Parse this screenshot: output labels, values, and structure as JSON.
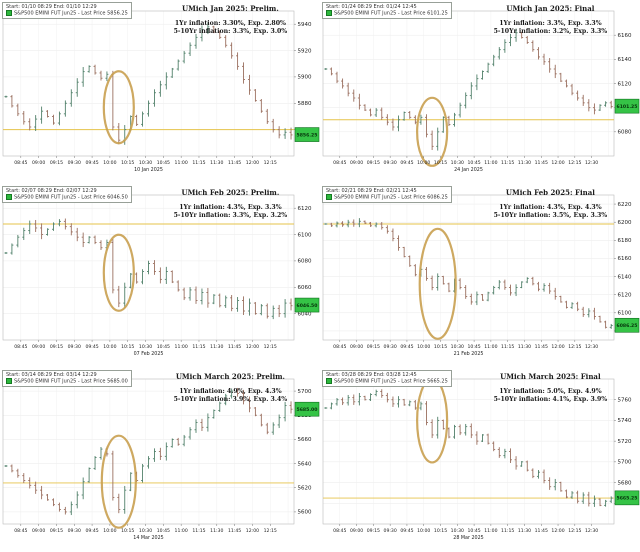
{
  "app": {
    "description": "Six-panel montage of S&P500 E-Mini futures intraday charts around University of Michigan inflation expectation releases",
    "colors": {
      "annotation_ellipse": "#c9a050",
      "reference_line": "#e6c34a",
      "last_price_box": "#35c346",
      "bar_up": "#51806a",
      "bar_down": "#9a6f5f",
      "grid": "#e9e9e9",
      "frame": "#bbbbbb"
    }
  },
  "chart_data": [
    {
      "id": "jan-prelim",
      "type": "bar",
      "ohlc_style": "open-close tick bars",
      "legend_range": "Start: 01/10 08:29 End: 01/10 12:29",
      "legend_series": "S&P500 EMINI FUT Jun25 - Last Price 5856.25",
      "title": "UMich Jan 2025: Prelim.",
      "stat1": "1Yr inflation: 3.30%, Exp. 2.80%",
      "stat2": "5-10Yr inflation: 3.3%, Exp. 3.0%",
      "date_label": "10 Jan 2025",
      "x_times": [
        "08:45",
        "09:00",
        "09:15",
        "09:30",
        "09:45",
        "10:00",
        "10:15",
        "10:30",
        "10:45",
        "11:00",
        "11:15",
        "11:30",
        "11:45",
        "12:00",
        "12:15"
      ],
      "y_min": 5840,
      "y_max": 5950,
      "y_ticks": [
        5940,
        5920,
        5900,
        5880,
        5860
      ],
      "closes": [
        5885,
        5878,
        5872,
        5866,
        5862,
        5868,
        5874,
        5870,
        5865,
        5872,
        5880,
        5888,
        5896,
        5904,
        5908,
        5903,
        5899,
        5902,
        5862,
        5852,
        5860,
        5870,
        5864,
        5872,
        5880,
        5888,
        5894,
        5900,
        5906,
        5912,
        5918,
        5924,
        5930,
        5936,
        5938,
        5934,
        5930,
        5924,
        5916,
        5908,
        5898,
        5890,
        5882,
        5874,
        5866,
        5860,
        5856,
        5858,
        5856
      ],
      "last_price": "5856.25",
      "ref_line": 5860,
      "circle_index": 19,
      "circle_rx": 15,
      "circle_ry": 36
    },
    {
      "id": "jan-final",
      "type": "bar",
      "ohlc_style": "open-close tick bars",
      "legend_range": "Start: 01/24 08:29 End: 01/24 12:45",
      "legend_series": "S&P500 EMINI FUT Jun25 - Last Price 6101.25",
      "title": "UMich Jan 2025: Final",
      "stat1": "1Yr inflation: 3.3%, Exp. 3.3%",
      "stat2": "5-10Yr inflation: 3.2%, Exp. 3.3%",
      "date_label": "24 Jan 2025",
      "x_times": [
        "08:45",
        "09:00",
        "09:15",
        "09:30",
        "09:45",
        "10:00",
        "10:15",
        "10:30",
        "10:45",
        "11:00",
        "11:15",
        "11:30",
        "11:45",
        "12:00",
        "12:15",
        "12:30"
      ],
      "y_min": 6060,
      "y_max": 6180,
      "y_ticks": [
        6160,
        6140,
        6120,
        6100,
        6080
      ],
      "closes": [
        6132,
        6128,
        6122,
        6118,
        6112,
        6108,
        6102,
        6098,
        6094,
        6098,
        6092,
        6088,
        6084,
        6090,
        6096,
        6092,
        6088,
        6092,
        6078,
        6068,
        6080,
        6092,
        6086,
        6094,
        6102,
        6110,
        6118,
        6124,
        6130,
        6136,
        6142,
        6148,
        6154,
        6158,
        6162,
        6158,
        6154,
        6148,
        6142,
        6138,
        6132,
        6128,
        6122,
        6118,
        6112,
        6108,
        6104,
        6100,
        6098,
        6102,
        6104,
        6101
      ],
      "last_price": "6101.25",
      "ref_line": 6090,
      "circle_index": 19,
      "circle_rx": 15,
      "circle_ry": 34
    },
    {
      "id": "feb-prelim",
      "type": "bar",
      "ohlc_style": "open-close tick bars",
      "legend_range": "Start: 02/07 08:29 End: 02/07 12:29",
      "legend_series": "S&P500 EMINI FUT Jun25 - Last Price 6046.50",
      "title": "UMich Feb 2025: Prelim.",
      "stat1": "1Yr inflation: 4.3%, Exp. 3.3%",
      "stat2": "5-10Yr inflation: 3.3%, Exp. 3.2%",
      "date_label": "07 Feb 2025",
      "x_times": [
        "08:45",
        "09:00",
        "09:15",
        "09:30",
        "09:45",
        "10:00",
        "10:15",
        "10:30",
        "10:45",
        "11:00",
        "11:15",
        "11:30",
        "11:45",
        "12:00",
        "12:15"
      ],
      "y_min": 6020,
      "y_max": 6130,
      "y_ticks": [
        6120,
        6100,
        6080,
        6060,
        6040
      ],
      "closes": [
        6086,
        6092,
        6098,
        6103,
        6108,
        6105,
        6100,
        6104,
        6108,
        6110,
        6106,
        6102,
        6098,
        6094,
        6098,
        6094,
        6090,
        6094,
        6058,
        6048,
        6060,
        6070,
        6064,
        6072,
        6078,
        6072,
        6066,
        6072,
        6064,
        6058,
        6052,
        6058,
        6050,
        6056,
        6048,
        6054,
        6046,
        6052,
        6044,
        6050,
        6042,
        6048,
        6040,
        6046,
        6038,
        6044,
        6040,
        6048,
        6046
      ],
      "last_price": "6046.50",
      "ref_line": 6108,
      "circle_index": 19,
      "circle_rx": 15,
      "circle_ry": 38
    },
    {
      "id": "feb-final",
      "type": "bar",
      "ohlc_style": "open-close tick bars",
      "legend_range": "Start: 02/21 08:29 End: 02/21 12:45",
      "legend_series": "S&P500 EMINI FUT Jun25 - Last Price 6086.25",
      "title": "UMich Feb 2025: Final",
      "stat1": "1Yr inflation: 4.3%, Exp. 4.3%",
      "stat2": "5-10Yr inflation: 3.5%, Exp. 3.3%",
      "date_label": "21 Feb 2025",
      "x_times": [
        "08:45",
        "09:00",
        "09:15",
        "09:30",
        "09:45",
        "10:00",
        "10:15",
        "10:30",
        "10:45",
        "11:00",
        "11:15",
        "11:30",
        "11:45",
        "12:00",
        "12:15",
        "12:30"
      ],
      "y_min": 6070,
      "y_max": 6230,
      "y_ticks": [
        6220,
        6200,
        6180,
        6160,
        6140,
        6120,
        6100,
        6080
      ],
      "closes": [
        6198,
        6196,
        6199,
        6197,
        6200,
        6198,
        6201,
        6199,
        6196,
        6198,
        6194,
        6190,
        6182,
        6172,
        6162,
        6152,
        6142,
        6148,
        6138,
        6128,
        6140,
        6132,
        6124,
        6136,
        6128,
        6118,
        6112,
        6120,
        6114,
        6122,
        6128,
        6134,
        6128,
        6122,
        6128,
        6134,
        6138,
        6132,
        6126,
        6130,
        6124,
        6118,
        6112,
        6106,
        6110,
        6104,
        6098,
        6102,
        6096,
        6090,
        6084,
        6086
      ],
      "last_price": "6086.25",
      "ref_line": 6198,
      "circle_index": 20,
      "circle_rx": 18,
      "circle_ry": 55
    },
    {
      "id": "mar-prelim",
      "type": "bar",
      "ohlc_style": "open-close tick bars",
      "legend_range": "Start: 03/14 08:29 End: 03/14 12:29",
      "legend_series": "S&P500 EMINI FUT Jun25 - Last Price 5685.00",
      "title": "UMich March 2025: Prelim.",
      "stat1": "1Yr inflation: 4.9%, Exp. 4.3%",
      "stat2": "5-10Yr inflation: 3.9%, Exp. 3.4%",
      "date_label": "14 Mar 2025",
      "x_times": [
        "08:45",
        "09:00",
        "09:15",
        "09:30",
        "09:45",
        "10:00",
        "10:15",
        "10:30",
        "10:45",
        "11:00",
        "11:15",
        "11:30",
        "11:45",
        "12:00",
        "12:15"
      ],
      "y_min": 5590,
      "y_max": 5710,
      "y_ticks": [
        5700,
        5680,
        5660,
        5640,
        5620,
        5600
      ],
      "closes": [
        5638,
        5634,
        5630,
        5626,
        5622,
        5618,
        5614,
        5610,
        5606,
        5602,
        5600,
        5606,
        5614,
        5625,
        5636,
        5645,
        5652,
        5648,
        5612,
        5602,
        5618,
        5632,
        5626,
        5638,
        5644,
        5650,
        5646,
        5654,
        5660,
        5656,
        5662,
        5668,
        5674,
        5670,
        5678,
        5684,
        5690,
        5696,
        5700,
        5698,
        5692,
        5686,
        5680,
        5672,
        5666,
        5672,
        5678,
        5688,
        5685
      ],
      "last_price": "5685.00",
      "ref_line": 5624,
      "circle_index": 19,
      "circle_rx": 17,
      "circle_ry": 46
    },
    {
      "id": "mar-final",
      "type": "bar",
      "ohlc_style": "open-close tick bars",
      "legend_range": "Start: 03/28 08:29 End: 03/28 12:45",
      "legend_series": "S&P500 EMINI FUT Jun25 - Last Price 5665.25",
      "title": "UMich March 2025: Final",
      "stat1": "1Yr inflation: 5.0%, Exp. 4.9%",
      "stat2": "5-10Yr inflation: 4.1%, Exp. 3.9%",
      "date_label": "28 Mar 2025",
      "x_times": [
        "08:45",
        "09:00",
        "09:15",
        "09:30",
        "09:45",
        "10:00",
        "10:15",
        "10:30",
        "10:45",
        "11:00",
        "11:15",
        "11:30",
        "11:45",
        "12:00",
        "12:15",
        "12:30"
      ],
      "y_min": 5640,
      "y_max": 5780,
      "y_ticks": [
        5760,
        5740,
        5720,
        5700,
        5680,
        5660
      ],
      "closes": [
        5752,
        5756,
        5760,
        5757,
        5762,
        5758,
        5763,
        5760,
        5765,
        5768,
        5764,
        5760,
        5756,
        5760,
        5755,
        5758,
        5752,
        5756,
        5738,
        5726,
        5740,
        5732,
        5724,
        5734,
        5728,
        5734,
        5726,
        5720,
        5726,
        5718,
        5712,
        5706,
        5710,
        5702,
        5696,
        5700,
        5692,
        5686,
        5690,
        5682,
        5676,
        5680,
        5672,
        5666,
        5670,
        5662,
        5668,
        5660,
        5664,
        5658,
        5662,
        5665
      ],
      "last_price": "5665.25",
      "ref_line": 5665,
      "circle_index": 19,
      "circle_rx": 15,
      "circle_ry": 42
    }
  ]
}
